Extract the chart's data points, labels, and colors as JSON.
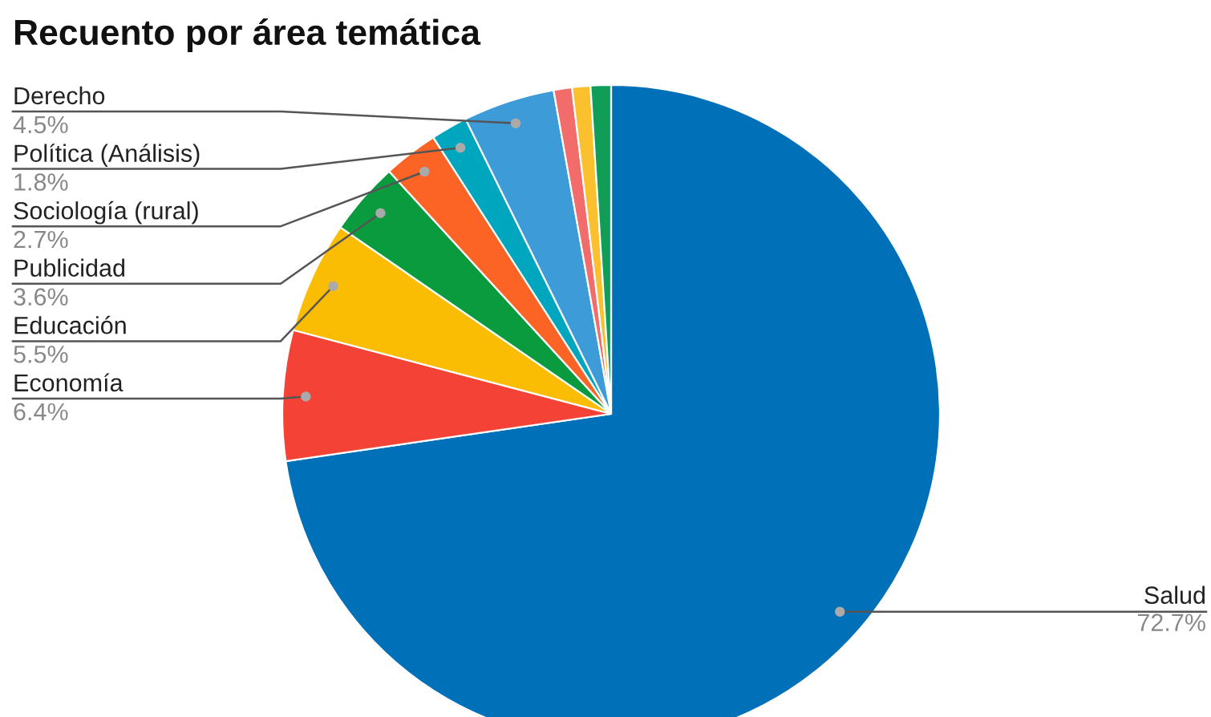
{
  "chart_data": {
    "type": "pie",
    "title": "Recuento por área temática",
    "categories": [
      "Salud",
      "Economía",
      "Educación",
      "Publicidad",
      "Sociología (rural)",
      "Política (Análisis)",
      "Derecho",
      null,
      null,
      null
    ],
    "values": [
      72.7,
      6.4,
      5.5,
      3.6,
      2.7,
      1.8,
      4.5,
      0.9,
      0.9,
      1.0
    ],
    "value_labels": [
      "72.7%",
      "6.4%",
      "5.5%",
      "3.6%",
      "2.7%",
      "1.8%",
      "4.5%",
      null,
      null,
      null
    ],
    "colors": [
      "#0070b8",
      "#f44336",
      "#fbbc04",
      "#0b9b3f",
      "#fb6424",
      "#00a6bd",
      "#3d9bd8",
      "#f36c6c",
      "#fbc02d",
      "#0f9d58"
    ],
    "legend": false
  }
}
